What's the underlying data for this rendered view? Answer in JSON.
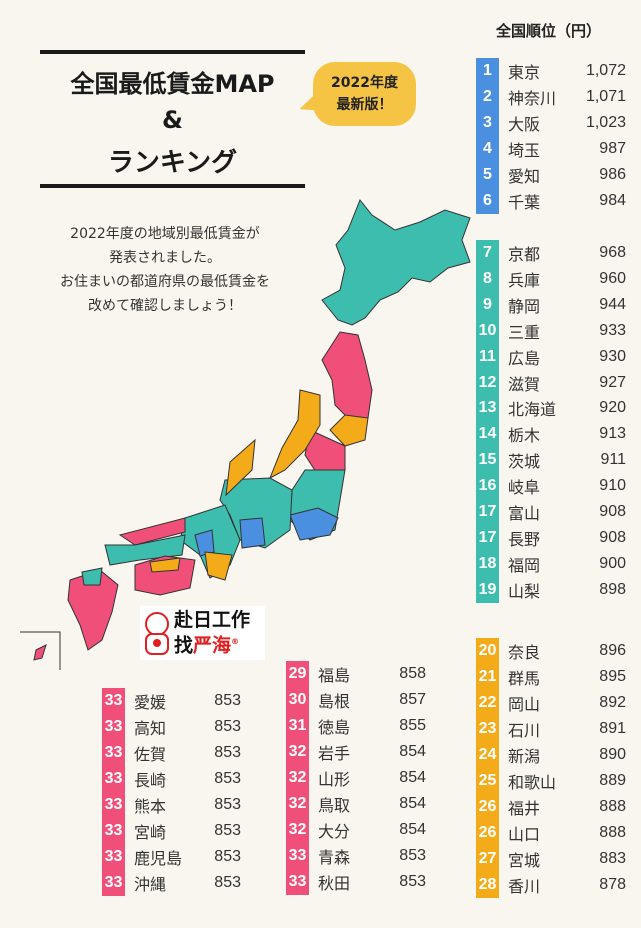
{
  "header": {
    "title": "全国最低賃金MAP",
    "amp": "&",
    "subtitle": "ランキング",
    "badge_line1": "2022年度",
    "badge_line2": "最新版！"
  },
  "intro": [
    "2022年度の地域別最低賃金が",
    "発表されました。",
    "お住まいの都道府県の最低賃金を",
    "改めて確認しましょう！"
  ],
  "ranking_header": "全国順位（円）",
  "colors": {
    "blue": "#4a8fe0",
    "teal": "#3dbdae",
    "orange": "#f4ab1a",
    "pink": "#ef4f78",
    "badge": "#f6c445",
    "background": "#f8f6ef"
  },
  "groups": [
    {
      "color": "blue",
      "rows": [
        [
          "1",
          "東京",
          "1,072"
        ],
        [
          "2",
          "神奈川",
          "1,071"
        ],
        [
          "3",
          "大阪",
          "1,023"
        ],
        [
          "4",
          "埼玉",
          "987"
        ],
        [
          "5",
          "愛知",
          "986"
        ],
        [
          "6",
          "千葉",
          "984"
        ]
      ]
    },
    {
      "color": "teal",
      "rows": [
        [
          "7",
          "京都",
          "968"
        ],
        [
          "8",
          "兵庫",
          "960"
        ],
        [
          "9",
          "静岡",
          "944"
        ],
        [
          "10",
          "三重",
          "933"
        ],
        [
          "11",
          "広島",
          "930"
        ],
        [
          "12",
          "滋賀",
          "927"
        ],
        [
          "13",
          "北海道",
          "920"
        ],
        [
          "14",
          "栃木",
          "913"
        ],
        [
          "15",
          "茨城",
          "911"
        ],
        [
          "16",
          "岐阜",
          "910"
        ],
        [
          "17",
          "富山",
          "908"
        ],
        [
          "17",
          "長野",
          "908"
        ],
        [
          "18",
          "福岡",
          "900"
        ],
        [
          "19",
          "山梨",
          "898"
        ]
      ]
    },
    {
      "color": "orange",
      "rows": [
        [
          "20",
          "奈良",
          "896"
        ],
        [
          "21",
          "群馬",
          "895"
        ],
        [
          "22",
          "岡山",
          "892"
        ],
        [
          "23",
          "石川",
          "891"
        ],
        [
          "24",
          "新潟",
          "890"
        ],
        [
          "25",
          "和歌山",
          "889"
        ],
        [
          "26",
          "福井",
          "888"
        ],
        [
          "26",
          "山口",
          "888"
        ],
        [
          "27",
          "宮城",
          "883"
        ],
        [
          "28",
          "香川",
          "878"
        ]
      ]
    },
    {
      "color": "pink",
      "rows": [
        [
          "29",
          "福島",
          "858"
        ],
        [
          "30",
          "島根",
          "857"
        ],
        [
          "31",
          "徳島",
          "855"
        ],
        [
          "32",
          "岩手",
          "854"
        ],
        [
          "32",
          "山形",
          "854"
        ],
        [
          "32",
          "鳥取",
          "854"
        ],
        [
          "32",
          "大分",
          "854"
        ],
        [
          "33",
          "青森",
          "853"
        ],
        [
          "33",
          "秋田",
          "853"
        ]
      ]
    },
    {
      "color": "pink",
      "rows": [
        [
          "33",
          "愛媛",
          "853"
        ],
        [
          "33",
          "高知",
          "853"
        ],
        [
          "33",
          "佐賀",
          "853"
        ],
        [
          "33",
          "長崎",
          "853"
        ],
        [
          "33",
          "熊本",
          "853"
        ],
        [
          "33",
          "宮崎",
          "853"
        ],
        [
          "33",
          "鹿児島",
          "853"
        ],
        [
          "33",
          "沖縄",
          "853"
        ]
      ]
    }
  ],
  "watermark": {
    "line1": "赴日工作",
    "line2a": "找",
    "line2b": "严海",
    "reg": "®"
  }
}
